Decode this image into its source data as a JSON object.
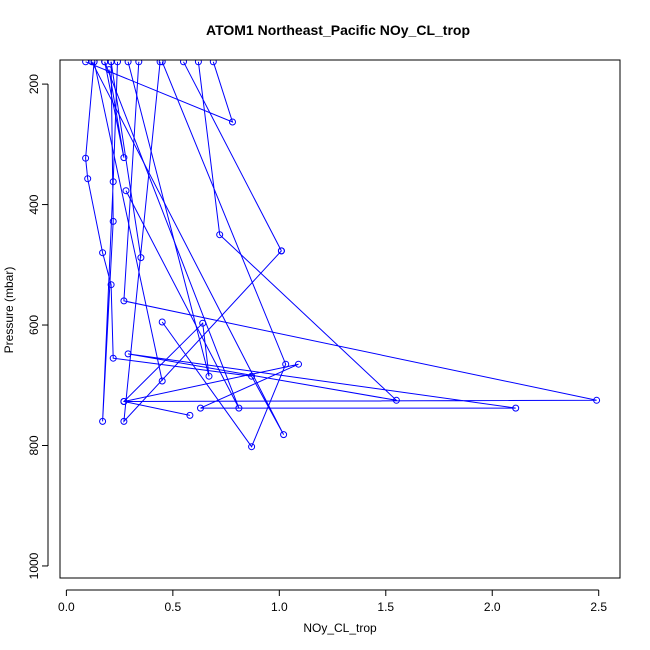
{
  "chart_data": {
    "type": "line",
    "title": "ATOM1 Northeast_Pacific NOy_CL_trop",
    "xlabel": "NOy_CL_trop",
    "ylabel": "Pressure (mbar)",
    "xlim": [
      -0.03,
      2.6
    ],
    "ylim": [
      1020,
      160
    ],
    "y_reversed": true,
    "x_ticks": [
      0.0,
      0.5,
      1.0,
      1.5,
      2.0,
      2.5
    ],
    "x_tick_labels": [
      "0.0",
      "0.5",
      "1.0",
      "1.5",
      "2.0",
      "2.5"
    ],
    "y_ticks": [
      200,
      400,
      600,
      800,
      1000
    ],
    "y_tick_labels": [
      "200",
      "400",
      "600",
      "800",
      "1000"
    ],
    "grid": false,
    "colors": {
      "series": "#0000ff",
      "axis": "#000000",
      "background": "#ffffff"
    },
    "marker": "open-circle",
    "series": [
      {
        "points": [
          [
            0.09,
            163
          ],
          [
            0.78,
            263
          ],
          [
            0.69,
            163
          ]
        ]
      },
      {
        "points": [
          [
            0.13,
            163
          ],
          [
            0.09,
            323
          ],
          [
            0.1,
            357
          ],
          [
            0.17,
            480
          ],
          [
            0.21,
            533
          ],
          [
            0.22,
            655
          ],
          [
            0.87,
            685
          ],
          [
            1.02,
            782
          ],
          [
            0.12,
            163
          ]
        ]
      },
      {
        "points": [
          [
            0.2,
            176
          ],
          [
            0.27,
            322
          ],
          [
            0.18,
            163
          ]
        ]
      },
      {
        "points": [
          [
            0.24,
            163
          ],
          [
            0.22,
            362
          ],
          [
            0.17,
            760
          ],
          [
            0.22,
            428
          ],
          [
            0.21,
            163
          ]
        ]
      },
      {
        "points": [
          [
            0.28,
            377
          ],
          [
            0.81,
            738
          ],
          [
            0.18,
            163
          ]
        ]
      },
      {
        "points": [
          [
            0.35,
            488
          ],
          [
            0.21,
            163
          ]
        ]
      },
      {
        "points": [
          [
            0.34,
            163
          ],
          [
            0.27,
            560
          ],
          [
            2.49,
            725
          ],
          [
            0.27,
            727
          ],
          [
            1.09,
            665
          ],
          [
            0.63,
            738
          ],
          [
            2.11,
            738
          ],
          [
            0.29,
            648
          ],
          [
            1.55,
            725
          ],
          [
            0.72,
            450
          ],
          [
            0.62,
            163
          ]
        ]
      },
      {
        "points": [
          [
            0.45,
            595
          ],
          [
            0.87,
            802
          ],
          [
            1.03,
            665
          ],
          [
            0.45,
            163
          ]
        ]
      },
      {
        "points": [
          [
            1.01,
            477
          ],
          [
            0.27,
            760
          ],
          [
            0.44,
            163
          ]
        ]
      },
      {
        "points": [
          [
            0.58,
            750
          ],
          [
            0.27,
            727
          ],
          [
            0.64,
            597
          ],
          [
            0.67,
            685
          ],
          [
            0.29,
            163
          ]
        ]
      },
      {
        "points": [
          [
            0.45,
            693
          ],
          [
            0.13,
            163
          ]
        ]
      },
      {
        "points": [
          [
            1.01,
            477
          ],
          [
            0.55,
            163
          ]
        ]
      }
    ]
  }
}
